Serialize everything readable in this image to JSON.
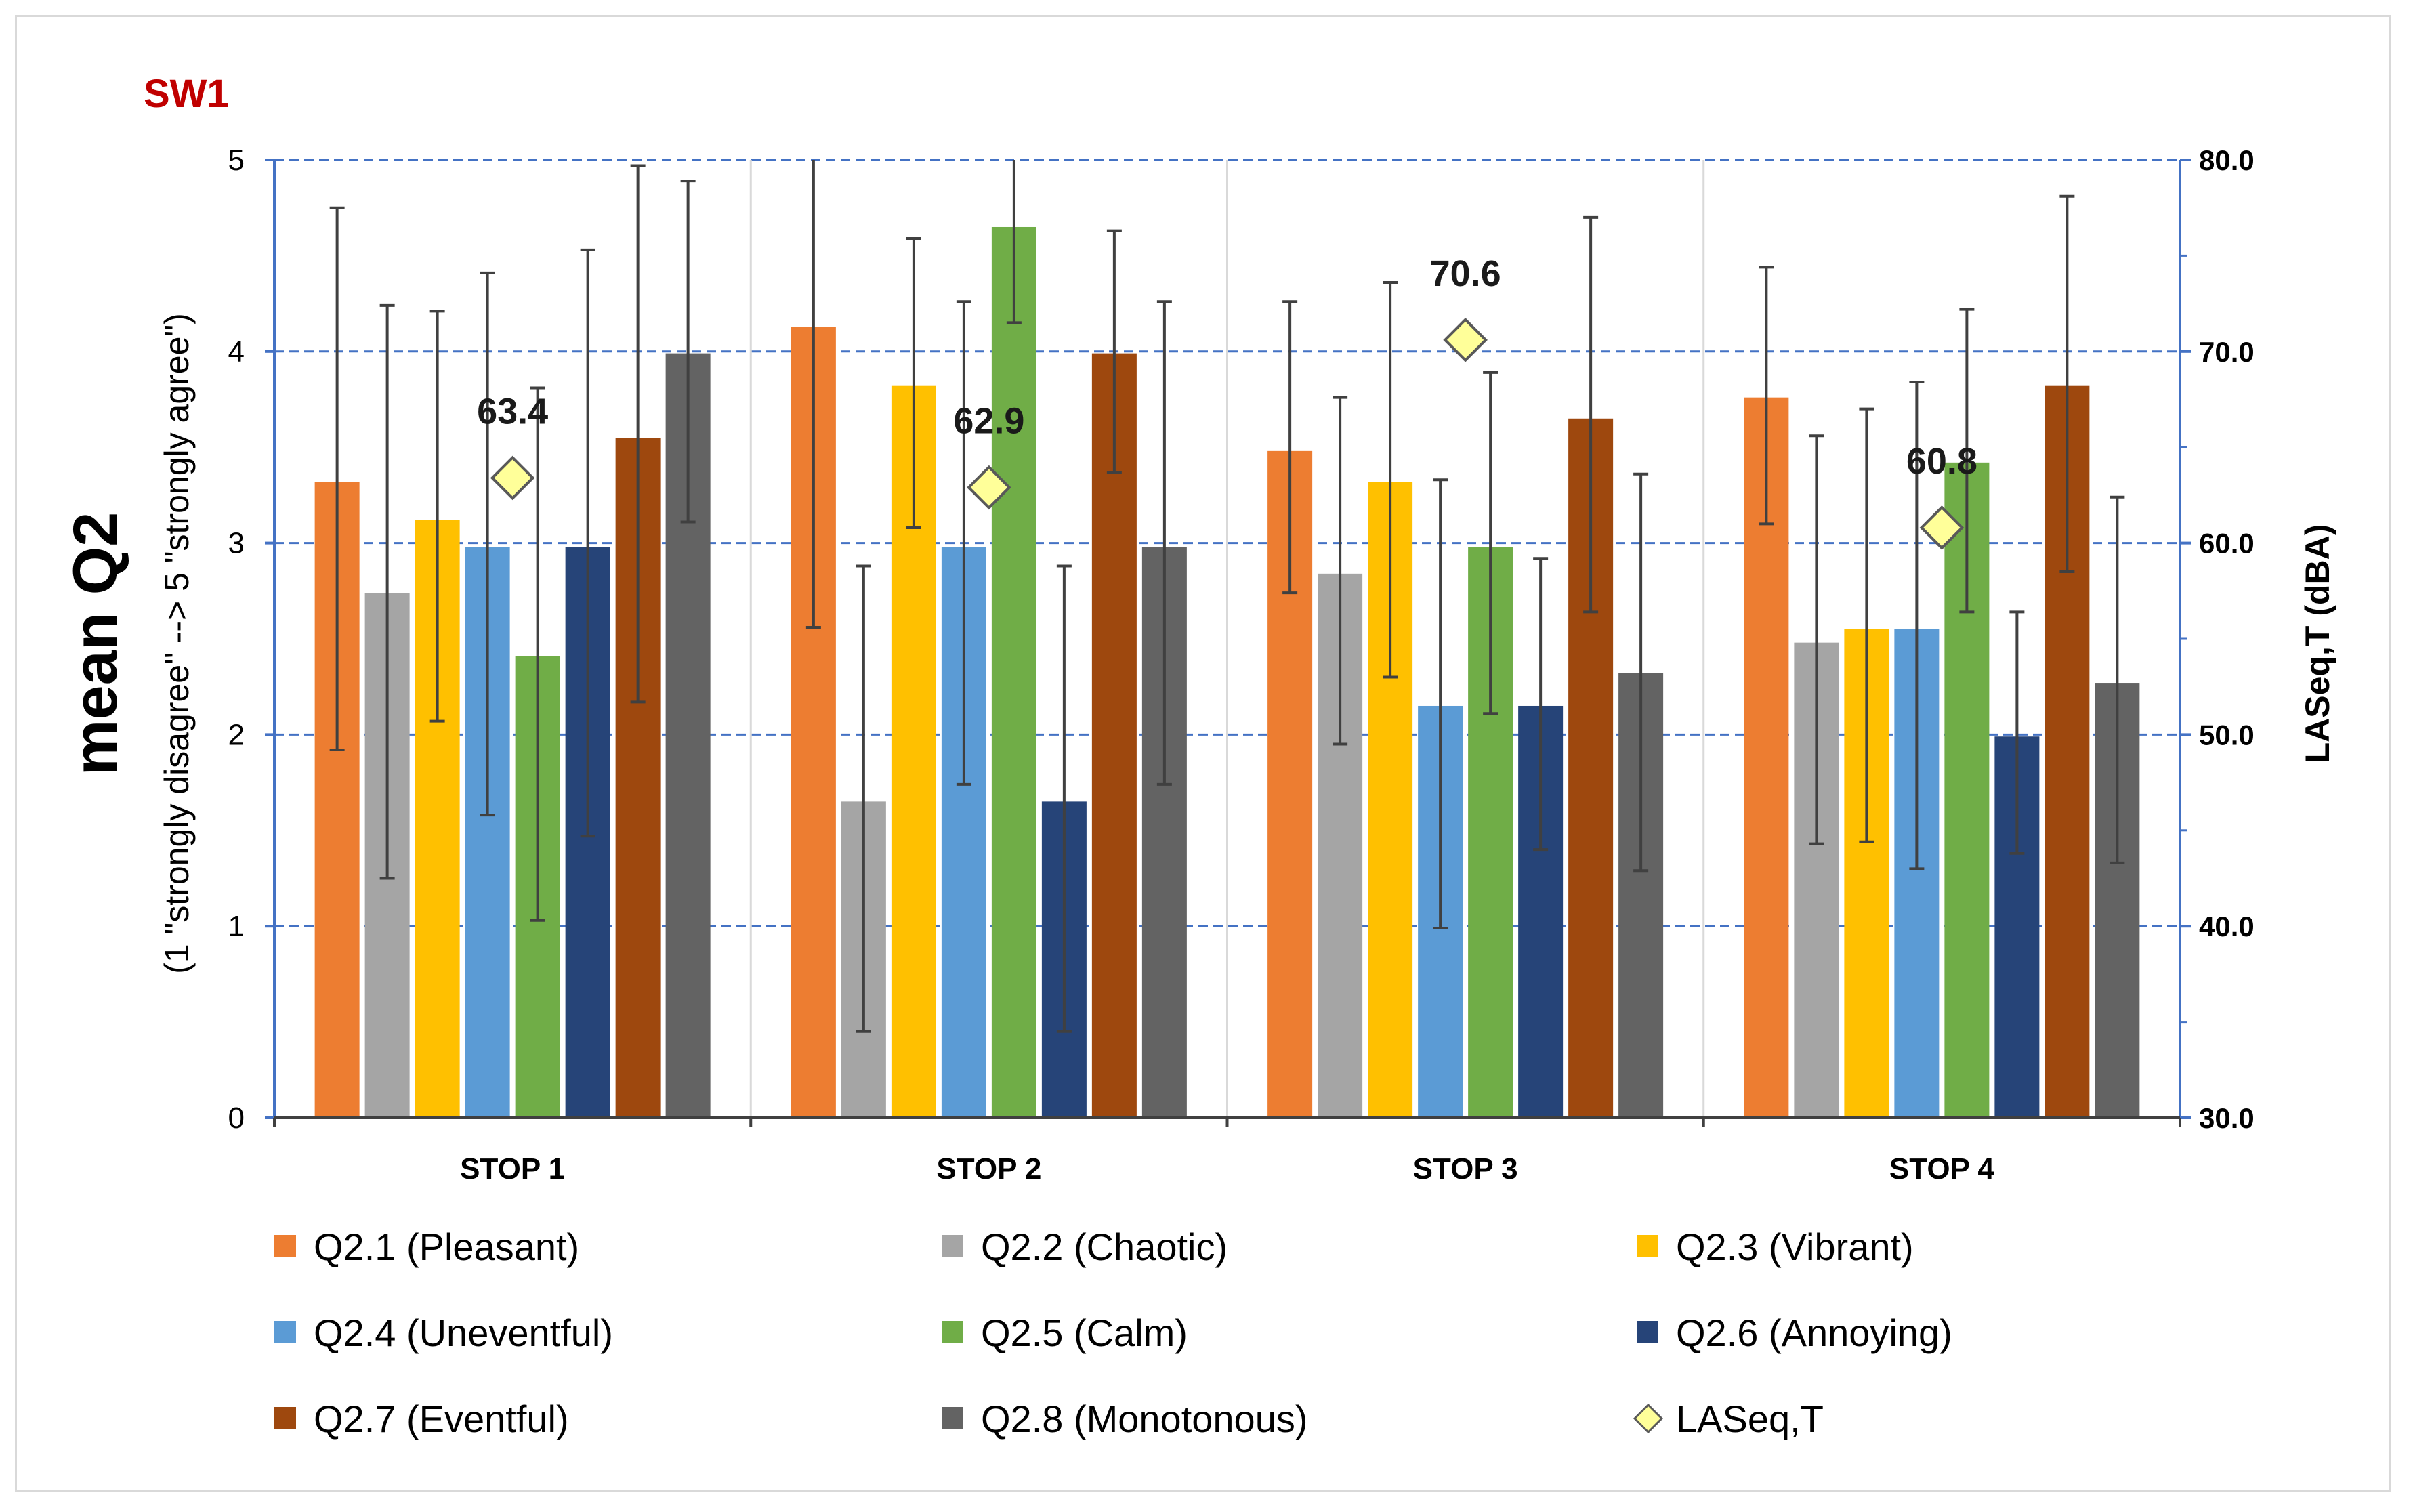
{
  "chart_data": {
    "type": "bar",
    "panel_label": "SW1",
    "categories": [
      "STOP 1",
      "STOP 2",
      "STOP 3",
      "STOP 4"
    ],
    "ylabel": "mean Q2",
    "ylabel_sub": "(1 \"strongly disagree\" --> 5 \"strongly agree\")",
    "ylim": [
      0,
      5
    ],
    "yticks": [
      "0",
      "1",
      "2",
      "3",
      "4",
      "5"
    ],
    "y2label": "LASeq,T (dBA)",
    "y2lim": [
      30,
      80
    ],
    "y2ticks": [
      "30.0",
      "40.0",
      "50.0",
      "60.0",
      "70.0",
      "80.0"
    ],
    "grid": "horizontal major gridlines",
    "legend_position": "bottom",
    "series": [
      {
        "name": "Q2.1 (Pleasant)",
        "color": "#ed7d31",
        "values": [
          3.32,
          4.13,
          3.48,
          3.76
        ],
        "err_low": [
          1.92,
          2.56,
          2.74,
          3.1
        ],
        "err_high": [
          4.75,
          5.0,
          4.26,
          4.44
        ]
      },
      {
        "name": "Q2.2 (Chaotic)",
        "color": "#a5a5a5",
        "values": [
          2.74,
          1.65,
          2.84,
          2.48
        ],
        "err_low": [
          1.25,
          0.45,
          1.95,
          1.43
        ],
        "err_high": [
          4.24,
          2.88,
          3.76,
          3.56
        ]
      },
      {
        "name": "Q2.3 (Vibrant)",
        "color": "#ffc000",
        "values": [
          3.12,
          3.82,
          3.32,
          2.55
        ],
        "err_low": [
          2.07,
          3.08,
          2.3,
          1.44
        ],
        "err_high": [
          4.21,
          4.59,
          4.36,
          3.7
        ]
      },
      {
        "name": "Q2.4 (Uneventful)",
        "color": "#5b9bd5",
        "values": [
          2.98,
          2.98,
          2.15,
          2.55
        ],
        "err_low": [
          1.58,
          1.74,
          0.99,
          1.3
        ],
        "err_high": [
          4.41,
          4.26,
          3.33,
          3.84
        ]
      },
      {
        "name": "Q2.5 (Calm)",
        "color": "#70ad47",
        "values": [
          2.41,
          4.65,
          2.98,
          3.42
        ],
        "err_low": [
          1.03,
          4.15,
          2.11,
          2.64
        ],
        "err_high": [
          3.81,
          5.0,
          3.89,
          4.22
        ]
      },
      {
        "name": "Q2.6 (Annoying)",
        "color": "#264478",
        "values": [
          2.98,
          1.65,
          2.15,
          1.99
        ],
        "err_low": [
          1.47,
          0.45,
          1.4,
          1.38
        ],
        "err_high": [
          4.53,
          2.88,
          2.92,
          2.64
        ]
      },
      {
        "name": "Q2.7 (Eventful)",
        "color": "#9e480e",
        "values": [
          3.55,
          3.99,
          3.65,
          3.82
        ],
        "err_low": [
          2.17,
          3.37,
          2.64,
          2.85
        ],
        "err_high": [
          4.97,
          4.63,
          4.7,
          4.81
        ]
      },
      {
        "name": "Q2.8 (Monotonous)",
        "color": "#636363",
        "values": [
          3.99,
          2.98,
          2.32,
          2.27
        ],
        "err_low": [
          3.11,
          1.74,
          1.29,
          1.33
        ],
        "err_high": [
          4.89,
          4.26,
          3.36,
          3.24
        ]
      }
    ],
    "line_series": {
      "name": "LASeq,T",
      "axis": "secondary",
      "marker": "diamond",
      "color": "#ffff99",
      "edge_color": "#595959",
      "values": [
        63.4,
        62.9,
        70.6,
        60.8
      ],
      "labels": [
        "63.4",
        "62.9",
        "70.6",
        "60.8"
      ]
    }
  }
}
